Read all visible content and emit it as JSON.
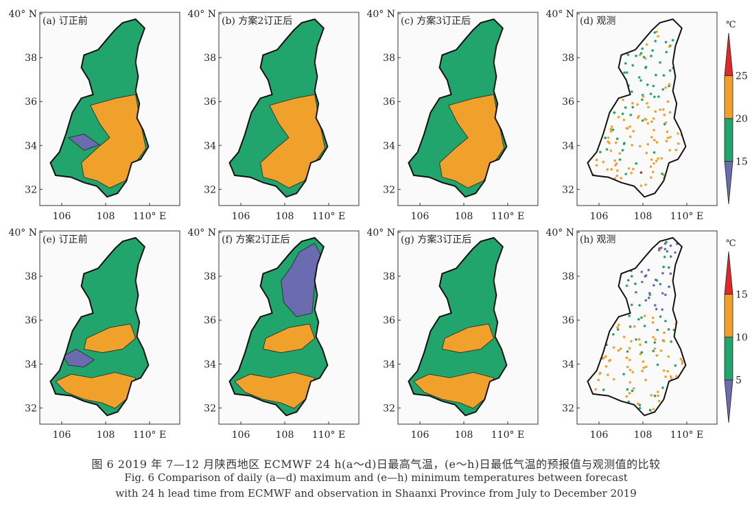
{
  "colors": {
    "purple": "#6b6bb0",
    "green": "#22a56c",
    "orange": "#f0a12b",
    "red": "#e02828",
    "background": "#ffffff",
    "panel_bg": "#fafafa",
    "outline": "#111111"
  },
  "axes": {
    "lat_ticks": [
      "40° N",
      "38",
      "36",
      "34",
      "32"
    ],
    "lon_ticks": [
      "106",
      "108",
      "110° E"
    ]
  },
  "panels": [
    {
      "label": "(a) 订正前",
      "type": "forecast"
    },
    {
      "label": "(b) 方案2订正后",
      "type": "forecast"
    },
    {
      "label": "(c) 方案3订正后",
      "type": "forecast"
    },
    {
      "label": "(d) 观测",
      "type": "observation"
    },
    {
      "label": "(e) 订正前",
      "type": "forecast"
    },
    {
      "label": "(f) 方案2订正后",
      "type": "forecast"
    },
    {
      "label": "(g) 方案3订正后",
      "type": "forecast"
    },
    {
      "label": "(h) 观测",
      "type": "observation"
    }
  ],
  "colorbars": [
    {
      "unit": "℃",
      "ticks": [
        "25",
        "20",
        "15"
      ]
    },
    {
      "unit": "℃",
      "ticks": [
        "15",
        "10",
        "5"
      ]
    }
  ],
  "caption": {
    "cn": "图 6    2019 年 7—12 月陕西地区 ECMWF 24 h(a～d)日最高气温，(e～h)日最低气温的预报值与观测值的比较",
    "en_line1": "Fig. 6    Comparison of daily (a—d) maximum and (e—h) minimum temperatures between forecast",
    "en_line2": "with 24 h lead time from ECMWF and observation in Shaanxi Province from July to December 2019"
  }
}
